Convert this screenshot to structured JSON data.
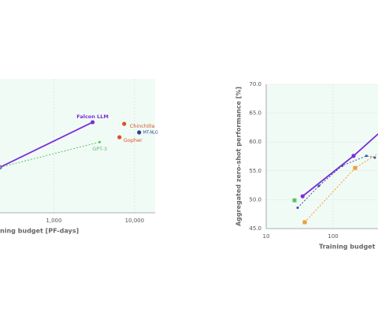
{
  "chart_data": [
    {
      "type": "line",
      "xscale": "log",
      "xlabel": "ning budget [PF-days]",
      "xlim": [
        100,
        18000
      ],
      "xticks": [
        {
          "value": 1000,
          "label": "1,000"
        },
        {
          "value": 10000,
          "label": "10,000"
        }
      ],
      "ylim": [
        45,
        70
      ],
      "grid": true,
      "series": [
        {
          "name": "Falcon LLM",
          "color": "#7b2fd6",
          "dash": false,
          "marker": true,
          "x": [
            215,
            3020
          ],
          "values": [
            53.5,
            61.9
          ]
        },
        {
          "name": "GPT-3",
          "color": "#5cc06a",
          "dash": true,
          "marker": true,
          "x": [
            215,
            3700
          ],
          "values": [
            53.5,
            58.2
          ]
        },
        {
          "name": "Chinchilla",
          "color": "#d9512c",
          "dash": false,
          "marker": true,
          "x": [
            7440
          ],
          "values": [
            61.6
          ]
        },
        {
          "name": "Gopher",
          "color": "#d9512c",
          "dash": false,
          "marker": true,
          "x": [
            6500
          ],
          "values": [
            59.1
          ]
        },
        {
          "name": "MT-NLG",
          "color": "#2a3f8f",
          "dash": false,
          "marker": true,
          "x": [
            11400
          ],
          "values": [
            60.0
          ]
        }
      ]
    },
    {
      "type": "line",
      "xscale": "log",
      "xlabel": "Training budget",
      "ylabel": "Aggregated zero-shot performance [%]",
      "xlim": [
        10,
        1000
      ],
      "xticks": [
        10,
        100
      ],
      "ylim": [
        45,
        70
      ],
      "yticks": [
        {
          "value": 45,
          "label": "45.0"
        },
        {
          "value": 50,
          "label": "50.0"
        },
        {
          "value": 55,
          "label": "55.0"
        },
        {
          "value": 60,
          "label": "60.0"
        },
        {
          "value": 65,
          "label": "65.0"
        },
        {
          "value": 70,
          "label": "70.0"
        }
      ],
      "grid": true,
      "series": [
        {
          "color": "#7b2fd6",
          "dash": false,
          "marker": true,
          "x": [
            35,
            202,
            470
          ],
          "values": [
            50.6,
            57.6,
            61.4
          ]
        },
        {
          "color": "#5cc06a",
          "dash": false,
          "marker": true,
          "x": [
            26.5
          ],
          "values": [
            49.9
          ]
        },
        {
          "color": "#f29a3c",
          "dash": true,
          "marker": true,
          "x": [
            37.7,
            213,
            470
          ],
          "values": [
            46.1,
            55.5,
            58.0
          ]
        },
        {
          "color": "#3a4f9f",
          "dash": true,
          "marker": true,
          "x": [
            29.5,
            61.4,
            137,
            315,
            420
          ],
          "values": [
            48.6,
            52.4,
            55.9,
            57.6,
            57.3
          ]
        }
      ]
    }
  ]
}
